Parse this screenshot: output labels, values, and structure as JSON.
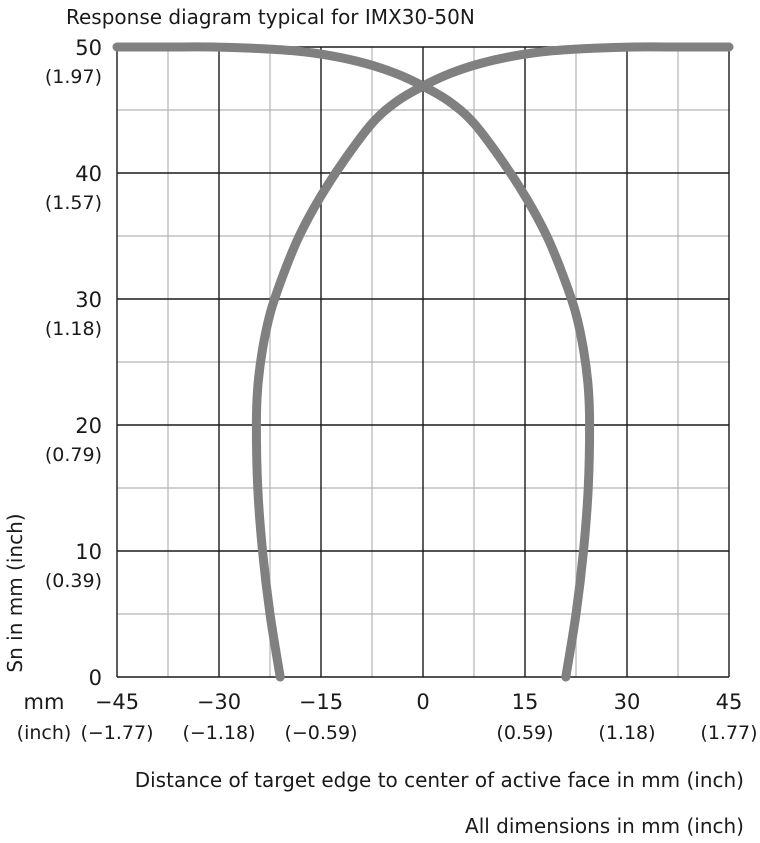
{
  "chart_data": {
    "type": "line",
    "title": "Response diagram typical for IMX30-50N",
    "xlabel": "Distance of target edge to center of active face in mm (inch)",
    "ylabel": "Sn in mm (inch)",
    "footnote": "All dimensions in mm (inch)",
    "x_unit_label": "mm",
    "x_unit_label_inch": "(inch)",
    "xlim": [
      -45,
      45
    ],
    "ylim": [
      0,
      50
    ],
    "x_ticks": [
      -45,
      -30,
      -15,
      0,
      15,
      30,
      45
    ],
    "x_tick_labels": [
      "−45",
      "−30",
      "−15",
      "0",
      "15",
      "30",
      "45"
    ],
    "x_tick_labels_inch": [
      "(−1.77)",
      "(−1.18)",
      "(−0.59)",
      "",
      "(0.59)",
      "(1.18)",
      "(1.77)"
    ],
    "y_ticks": [
      0,
      10,
      20,
      30,
      40,
      50
    ],
    "y_tick_labels": [
      "0",
      "10",
      "20",
      "30",
      "40",
      "50"
    ],
    "y_tick_labels_inch": [
      "",
      "(0.39)",
      "(0.79)",
      "(1.18)",
      "(1.57)",
      "(1.97)"
    ],
    "grid": true,
    "colors": {
      "curve": "#808080",
      "grid_major": "#1a1a1a",
      "grid_minor": "#b3b3b3",
      "text": "#1a1a1a"
    },
    "series": [
      {
        "x": [
          -21,
          -22.5,
          -23.6,
          -24.3,
          -24.5,
          -24.3,
          -23.6,
          -22.4,
          -20.5,
          -18.2,
          -15.2,
          -11.6,
          -7.4,
          -3.8,
          0,
          4,
          8.5,
          13.5,
          19,
          25,
          31,
          38,
          45
        ],
        "y": [
          0,
          5,
          10,
          15,
          20,
          23,
          26,
          29,
          32,
          35,
          38,
          41,
          44,
          45.7,
          46.9,
          47.9,
          48.7,
          49.3,
          49.7,
          49.9,
          50,
          50,
          50
        ]
      },
      {
        "x": [
          21,
          22.5,
          23.6,
          24.3,
          24.5,
          24.3,
          23.6,
          22.4,
          20.5,
          18.2,
          15.2,
          11.6,
          7.4,
          3.8,
          0,
          -4,
          -8.5,
          -13.5,
          -19,
          -25,
          -31,
          -38,
          -45
        ],
        "y": [
          0,
          5,
          10,
          15,
          20,
          23,
          26,
          29,
          32,
          35,
          38,
          41,
          44,
          45.7,
          46.9,
          47.9,
          48.7,
          49.3,
          49.7,
          49.9,
          50,
          50,
          50
        ]
      }
    ]
  }
}
